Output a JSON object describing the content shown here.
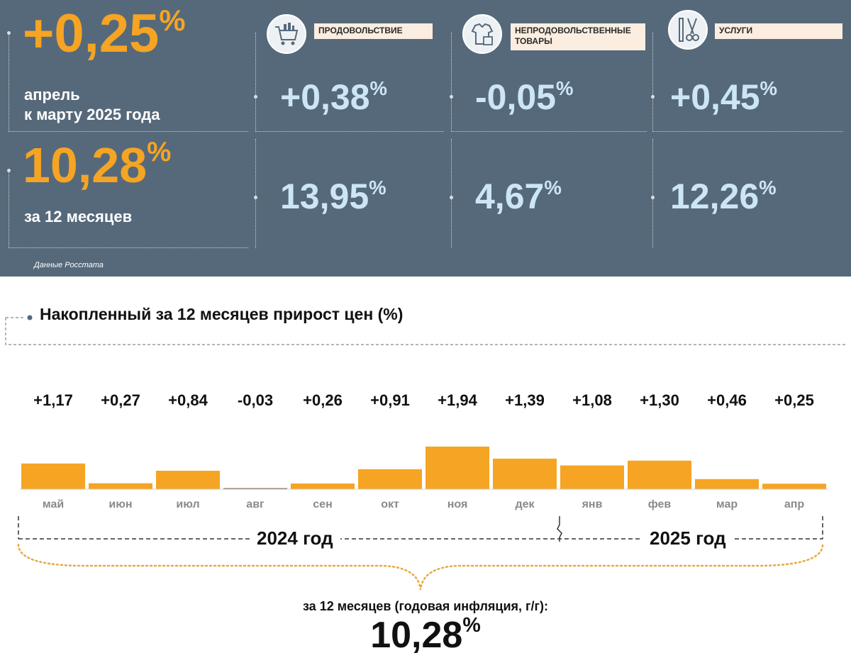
{
  "monthly": {
    "value": "+0,25",
    "unit": "%",
    "label_line1": "апрель",
    "label_line2": "к марту 2025 года"
  },
  "annual": {
    "value": "10,28",
    "unit": "%",
    "label": "за 12 месяцев"
  },
  "categories": [
    {
      "label": "ПРОДОВОЛЬСТВИЕ",
      "monthly": "+0,38",
      "annual": "13,95",
      "unit": "%",
      "icon": "shopping-cart-icon"
    },
    {
      "label": "НЕПРОДОВОЛЬСТВЕННЫЕ ТОВАРЫ",
      "monthly": "-0,05",
      "annual": "4,67",
      "unit": "%",
      "icon": "clothing-bag-icon"
    },
    {
      "label": "УСЛУГИ",
      "monthly": "+0,45",
      "annual": "12,26",
      "unit": "%",
      "icon": "comb-scissors-icon"
    }
  ],
  "source": "Данные Росстата",
  "chart_data": {
    "type": "bar",
    "title": "Накопленный за 12 месяцев прирост цен (%)",
    "categories": [
      "май",
      "июн",
      "июл",
      "авг",
      "сен",
      "окт",
      "ноя",
      "дек",
      "янв",
      "фев",
      "мар",
      "апр"
    ],
    "values": [
      1.17,
      0.27,
      0.84,
      -0.03,
      0.26,
      0.91,
      1.94,
      1.39,
      1.08,
      1.3,
      0.46,
      0.25
    ],
    "value_labels": [
      "+1,17",
      "+0,27",
      "+0,84",
      "-0,03",
      "+0,26",
      "+0,91",
      "+1,94",
      "+1,39",
      "+1,08",
      "+1,30",
      "+0,46",
      "+0,25"
    ],
    "bar_color": "#f5a423",
    "years": [
      "2024 год",
      "2025 год"
    ],
    "year_split_index": 8
  },
  "summary": {
    "caption": "за 12 месяцев (годовая инфляция, г/г):",
    "value": "10,28",
    "unit": "%"
  }
}
